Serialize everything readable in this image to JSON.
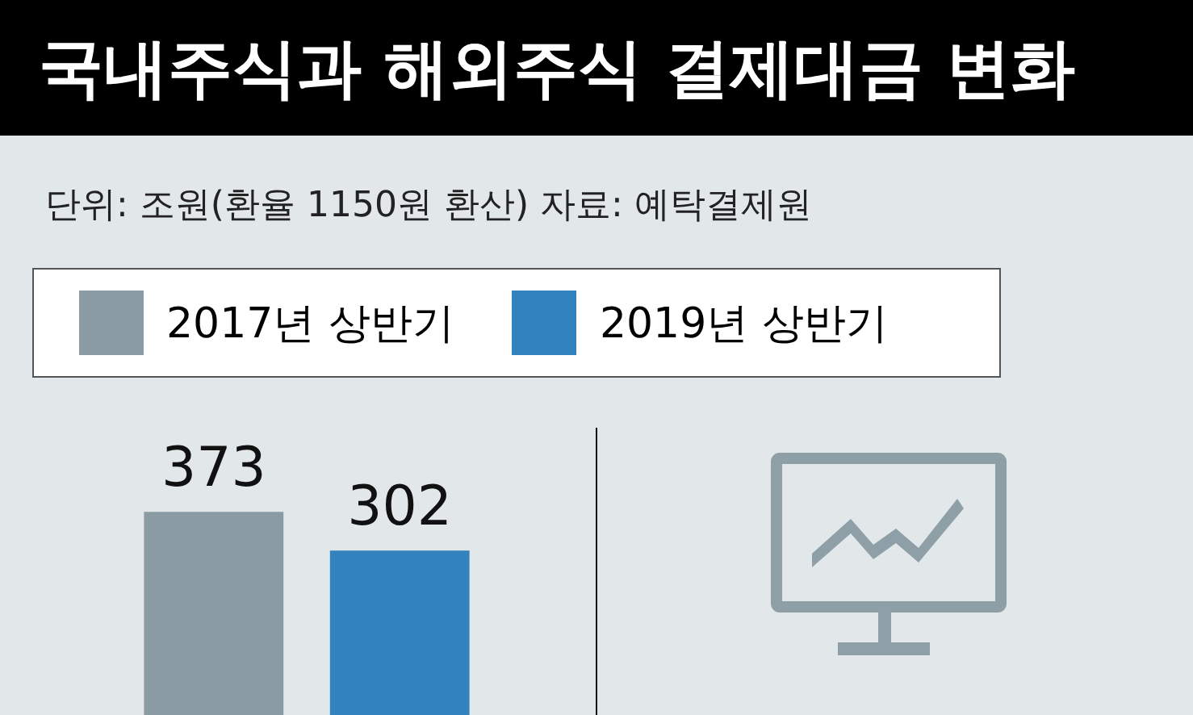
{
  "chart_data": {
    "type": "bar",
    "title": "국내주식과 해외주식 결제대금 변화",
    "subtitle": "단위: 조원(환율 1150원 환산) 자료: 예탁결제원",
    "categories": [
      null
    ],
    "series": [
      {
        "name": "2017년 상반기",
        "color": "#8a9ba3",
        "values": [
          373
        ]
      },
      {
        "name": "2019년 상반기",
        "color": "#3282bd",
        "values": [
          302
        ]
      }
    ],
    "legend": "top",
    "data_labels": true
  }
}
